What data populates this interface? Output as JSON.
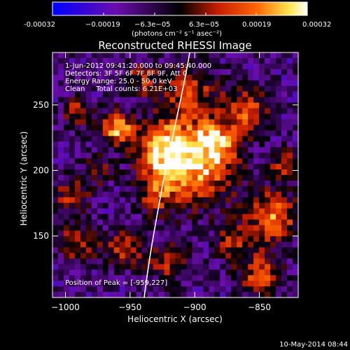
{
  "chart_data": {
    "type": "heatmap",
    "title": "Reconstructed RHESSI Image",
    "xlabel": "Heliocentric X (arcsec)",
    "ylabel": "Heliocentric Y (arcsec)",
    "xlim": [
      -1010,
      -820
    ],
    "ylim": [
      103,
      290
    ],
    "x_ticks": [
      -1000,
      -950,
      -900,
      -850
    ],
    "x_tick_labels": [
      "−1000",
      "−950",
      "−900",
      "−850"
    ],
    "y_ticks": [
      150,
      200,
      250
    ],
    "y_tick_labels": [
      "150",
      "200",
      "250"
    ],
    "colorbar": {
      "range": [
        -0.00032,
        0.00032
      ],
      "tick_labels": [
        "-0.00032",
        "−0.00019",
        "−6.3e−05",
        "6.3e−05",
        "0.00019",
        "0.00032"
      ],
      "unit_label": "(photons cm⁻² s⁻¹ asec⁻²)",
      "colormap": [
        "#0000ff",
        "#6a0dad",
        "#000000",
        "#c81e00",
        "#ff6400",
        "#ffe650",
        "#ffffff"
      ]
    },
    "annotations": [
      "1-Jun-2012 09:41:20.000 to 09:45:40.000",
      "Detectors: 3F 5F 6F 7F 8F 9F, Att 0",
      "Energy Range: 25.0 - 50.0 keV",
      "Clean     Total counts: 6.21E+03"
    ],
    "peak_label": "Position of Peak = [-959,227]",
    "peak_position": [
      -959,
      227
    ],
    "grid": false,
    "limb_curve": true
  },
  "footer": {
    "timestamp": "10-May-2014 08:44"
  }
}
